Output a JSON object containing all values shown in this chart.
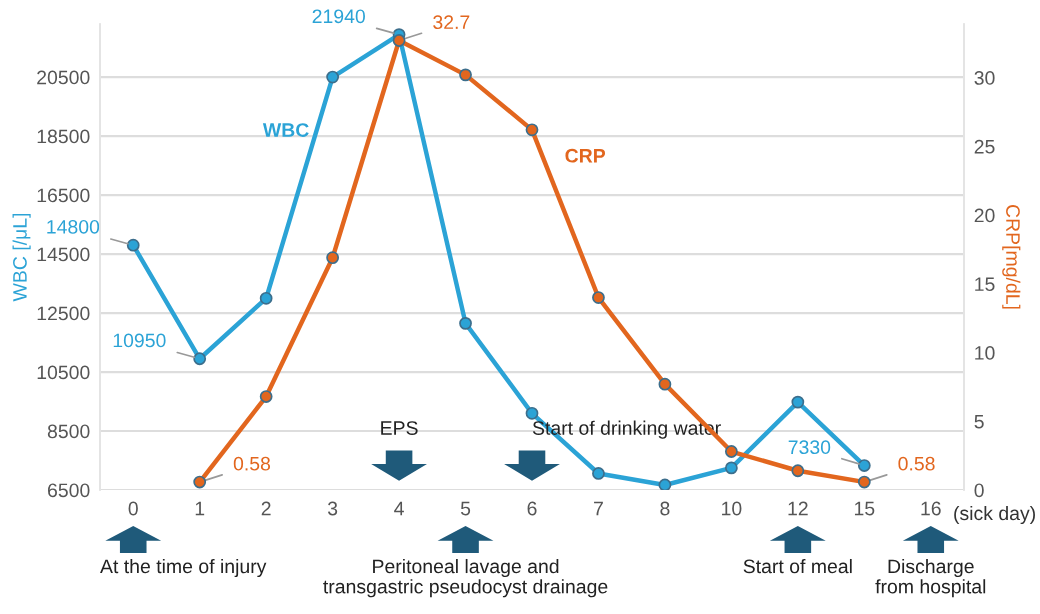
{
  "chart_data": {
    "type": "line",
    "categories": [
      "0",
      "1",
      "2",
      "3",
      "4",
      "5",
      "6",
      "7",
      "8",
      "10",
      "12",
      "15",
      "16"
    ],
    "xlabel": "(sick day)",
    "ylabel": "WBC [/μL]",
    "y2label": "CRP[mg/dL]",
    "series": [
      {
        "name": "WBC",
        "color": "#2ba3d6",
        "values": [
          14800,
          10950,
          13000,
          20500,
          21940,
          12150,
          9100,
          7060,
          6670,
          7250,
          9480,
          7330,
          null
        ],
        "value_labels": [
          "14800",
          "10950",
          null,
          null,
          "21940",
          null,
          null,
          null,
          null,
          null,
          null,
          "7330",
          null
        ]
      },
      {
        "name": "CRP",
        "color": "#e2661e",
        "axis": "y2",
        "values": [
          null,
          0.58,
          6.8,
          16.9,
          32.7,
          30.2,
          26.2,
          14.0,
          7.7,
          2.8,
          1.4,
          0.58,
          null
        ],
        "value_labels": [
          null,
          "0.58",
          null,
          null,
          "32.7",
          null,
          null,
          null,
          null,
          null,
          null,
          "0.58",
          null
        ]
      }
    ],
    "ylim": [
      6500,
      22300
    ],
    "yticks": [
      6500,
      8500,
      10500,
      12500,
      14500,
      16500,
      18500,
      20500
    ],
    "y2lim": [
      0,
      33.9
    ],
    "y2ticks": [
      0,
      5,
      10,
      15,
      20,
      25,
      30
    ],
    "grid": "y",
    "marker": "circle",
    "line_style": "solid",
    "legend": false,
    "annotations": [
      "EPS",
      "Start of drinking water",
      "At the time of injury",
      "Peritoneal lavage and\ntransgastric pseudocyst drainage",
      "Start of meal",
      "Discharge\nfrom hospital"
    ]
  }
}
